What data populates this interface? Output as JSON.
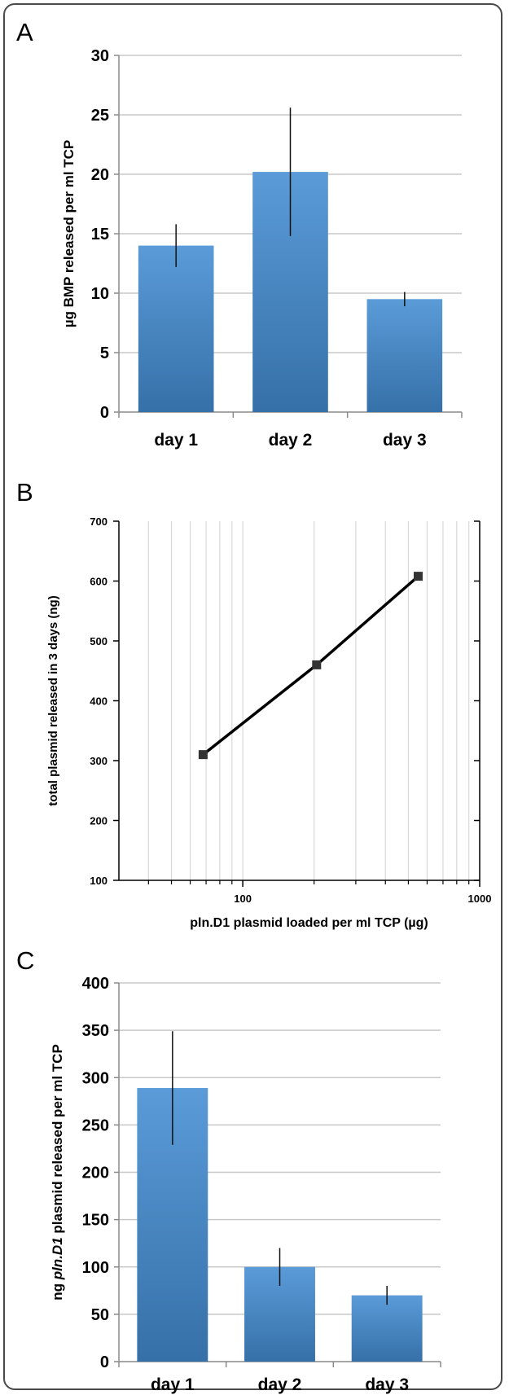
{
  "chart_data": [
    {
      "panel": "A",
      "type": "bar",
      "categories": [
        "day 1",
        "day 2",
        "day 3"
      ],
      "values": [
        14.0,
        20.2,
        9.5
      ],
      "error": [
        1.8,
        5.4,
        0.6
      ],
      "ylabel": "µg BMP released per ml TCP",
      "ylim": [
        0,
        30
      ],
      "yticks": [
        0,
        5,
        10,
        15,
        20,
        25,
        30
      ],
      "grid": true,
      "colors": {
        "bar_top": "#5a9bd8",
        "bar_bottom": "#3670a8",
        "grid": "#c8c8c8"
      }
    },
    {
      "panel": "B",
      "type": "line",
      "xscale": "log",
      "x": [
        68,
        205,
        550
      ],
      "y": [
        310,
        460,
        608
      ],
      "xlabel": "pln.D1 plasmid loaded per ml TCP (µg)",
      "ylabel": "total plasmid released in 3 days (ng)",
      "xlim": [
        30,
        1000
      ],
      "ylim": [
        100,
        700
      ],
      "xticks": [
        100,
        1000
      ],
      "yticks": [
        100,
        200,
        300,
        400,
        500,
        600,
        700
      ],
      "grid": true,
      "colors": {
        "line": "#000000",
        "marker": "#333333",
        "grid": "#d8d8d8"
      }
    },
    {
      "panel": "C",
      "type": "bar",
      "categories": [
        "day 1",
        "day 2",
        "day 3"
      ],
      "values": [
        289,
        100,
        70
      ],
      "error": [
        60,
        20,
        10
      ],
      "ylabel": "ng pln.D1 plasmid released per ml TCP",
      "ylabel_parts": [
        "ng ",
        "pln.D1",
        " plasmid released per ml TCP"
      ],
      "ylim": [
        0,
        400
      ],
      "yticks": [
        0,
        50,
        100,
        150,
        200,
        250,
        300,
        350,
        400
      ],
      "grid": true,
      "colors": {
        "bar_top": "#5a9bd8",
        "bar_bottom": "#3670a8",
        "grid": "#c8c8c8"
      }
    }
  ],
  "panels": {
    "a": "A",
    "b": "B",
    "c": "C"
  }
}
